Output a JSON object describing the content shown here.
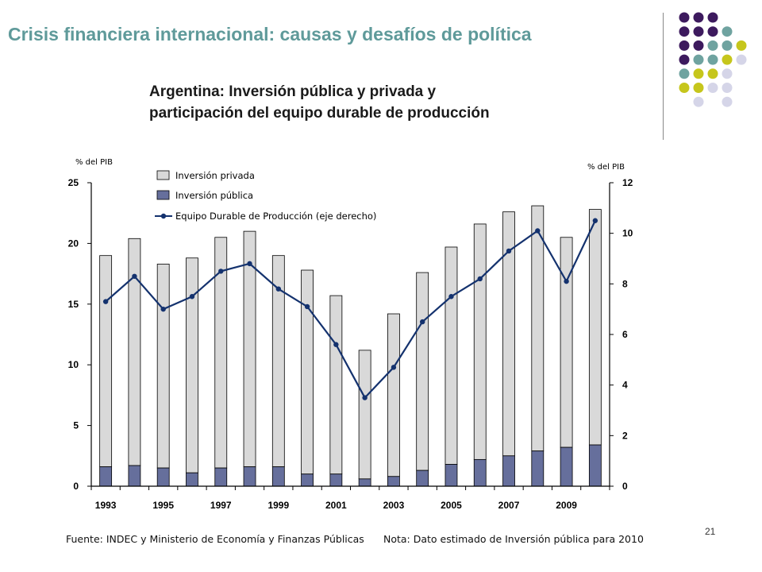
{
  "slide": {
    "title": "Crisis financiera internacional: causas y desafíos de política",
    "page_number": "21"
  },
  "decoration": {
    "dot_colors": {
      "purple": "#3d1a5e",
      "teal": "#6fa3a0",
      "olive": "#c6c61c",
      "lavender": "#d5d5e8"
    },
    "dot_grid": [
      [
        "purple",
        "purple",
        "purple",
        null
      ],
      [
        "purple",
        "purple",
        "purple",
        "teal"
      ],
      [
        "purple",
        "purple",
        "teal",
        "teal",
        "olive"
      ],
      [
        "purple",
        "teal",
        "teal",
        "olive",
        "lavender"
      ],
      [
        "teal",
        "olive",
        "olive",
        "lavender"
      ],
      [
        "olive",
        "olive",
        "lavender",
        "lavender"
      ],
      [
        null,
        "lavender",
        null,
        "lavender"
      ]
    ]
  },
  "chart_data": {
    "type": "bar",
    "title_line1": "Argentina: Inversión pública y privada y",
    "title_line2": "participación del equipo durable de producción",
    "ylabel_left": "% del PIB",
    "ylabel_right": "% del PIB",
    "x": [
      1993,
      1994,
      1995,
      1996,
      1997,
      1998,
      1999,
      2000,
      2001,
      2002,
      2003,
      2004,
      2005,
      2006,
      2007,
      2008,
      2009,
      2010
    ],
    "x_tick_labels": [
      "1993",
      "1995",
      "1997",
      "1999",
      "2001",
      "2003",
      "2005",
      "2007",
      "2009"
    ],
    "ylim_left": [
      0,
      25
    ],
    "yticks_left": [
      "0",
      "5",
      "10",
      "15",
      "20",
      "25"
    ],
    "ylim_right": [
      0,
      12
    ],
    "yticks_right": [
      "0",
      "2",
      "4",
      "6",
      "8",
      "10",
      "12"
    ],
    "series": [
      {
        "name": "Inversión privada",
        "kind": "bar",
        "color": "#d9d9d9",
        "values": [
          17.4,
          18.7,
          16.8,
          17.7,
          19.0,
          19.4,
          17.4,
          16.8,
          14.7,
          10.6,
          13.4,
          16.3,
          17.9,
          19.4,
          20.1,
          20.2,
          17.3,
          19.4
        ]
      },
      {
        "name": "Inversión pública",
        "kind": "bar",
        "color": "#666f9c",
        "values": [
          1.6,
          1.7,
          1.5,
          1.1,
          1.5,
          1.6,
          1.6,
          1.0,
          1.0,
          0.6,
          0.8,
          1.3,
          1.8,
          2.2,
          2.5,
          2.9,
          3.2,
          3.4
        ]
      },
      {
        "name": "Equipo Durable de Producción (eje derecho)",
        "kind": "line",
        "axis": "right",
        "color": "#14326e",
        "values": [
          7.3,
          8.3,
          7.0,
          7.5,
          8.5,
          8.8,
          7.8,
          7.1,
          5.6,
          3.5,
          4.7,
          6.5,
          7.5,
          8.2,
          9.3,
          10.1,
          8.1,
          10.5
        ]
      }
    ],
    "legend_position": "top-left"
  },
  "footer": {
    "source": "Fuente: INDEC y Ministerio de Economía y Finanzas Públicas",
    "note": "Nota: Dato estimado de Inversión pública para 2010"
  }
}
